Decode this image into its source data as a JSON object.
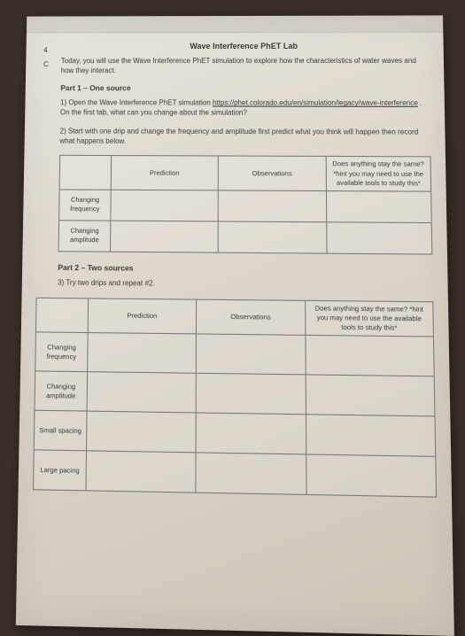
{
  "title": "Wave Interference PhET Lab",
  "margin_num": "4",
  "margin_letter": "C",
  "intro": "Today, you will use the Wave Interference PhET simulation to explore how the characteristics of water waves and how they interact.",
  "part1": {
    "label": "Part 1 – One source",
    "q1_a": "1) Open the Wave Interference PhET simulation ",
    "q1_link": "https://phet.colorado.edu/en/simulation/legacy/wave-interference",
    "q1_b": " . On the first tab, what can you change about the simulation?",
    "q2": "2) Start with one drip and change the frequency and amplitude first predict what you think will happen then record what happens below."
  },
  "table1": {
    "headers": {
      "c1": "",
      "c2": "Prediction",
      "c3": "Observations",
      "c4": "Does anything stay the same? *hint you may need to use the available tools to study this*"
    },
    "rows": [
      {
        "label": "Changing frequency"
      },
      {
        "label": "Changing amplitude"
      }
    ]
  },
  "part2": {
    "label": "Part 2 – Two sources",
    "q3": "3) Try two drips and repeat #2."
  },
  "table2": {
    "headers": {
      "c1": "",
      "c2": "Prediction",
      "c3": "Observations",
      "c4": "Does anything stay the same? *hint you may need to use the available tools to study this*"
    },
    "rows": [
      {
        "label": "Changing frequency"
      },
      {
        "label": "Changing amplitude"
      },
      {
        "label": "Small spacing"
      },
      {
        "label": "Large pacing"
      }
    ]
  },
  "colors": {
    "paper": "#ddd7cc",
    "background": "#3a2f28",
    "text": "#3a3a3a",
    "border": "#777"
  }
}
